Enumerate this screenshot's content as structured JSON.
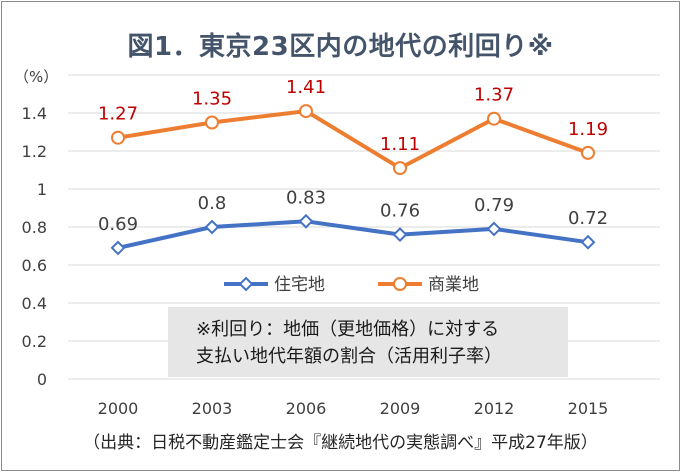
{
  "chart_data": {
    "type": "line",
    "title": "図1．東京23区内の地代の利回り※",
    "ylabel": "（%）",
    "xlabel": "",
    "categories": [
      "2000",
      "2003",
      "2006",
      "2009",
      "2012",
      "2015"
    ],
    "ylim": [
      0,
      1.6
    ],
    "yticks": [
      "0",
      "0.2",
      "0.4",
      "0.6",
      "0.8",
      "1",
      "1.2",
      "1.4"
    ],
    "grid": true,
    "legend_position": "inside-center",
    "series": [
      {
        "name": "住宅地",
        "values": [
          0.69,
          0.8,
          0.83,
          0.76,
          0.79,
          0.72
        ],
        "labels": [
          "0.69",
          "0.8",
          "0.83",
          "0.76",
          "0.79",
          "0.72"
        ],
        "color": "#4472c4",
        "label_color": "#404040",
        "marker": "diamond"
      },
      {
        "name": "商業地",
        "values": [
          1.27,
          1.35,
          1.41,
          1.11,
          1.37,
          1.19
        ],
        "labels": [
          "1.27",
          "1.35",
          "1.41",
          "1.11",
          "1.37",
          "1.19"
        ],
        "color": "#ed7d31",
        "label_color": "#c00000",
        "marker": "circle"
      }
    ],
    "annotation": [
      "※利回り：地価（更地価格）に対する",
      "支払い地代年額の割合（活用利子率）"
    ],
    "source": "（出典：日税不動産鑑定士会『継続地代の実態調べ』平成27年版）"
  }
}
